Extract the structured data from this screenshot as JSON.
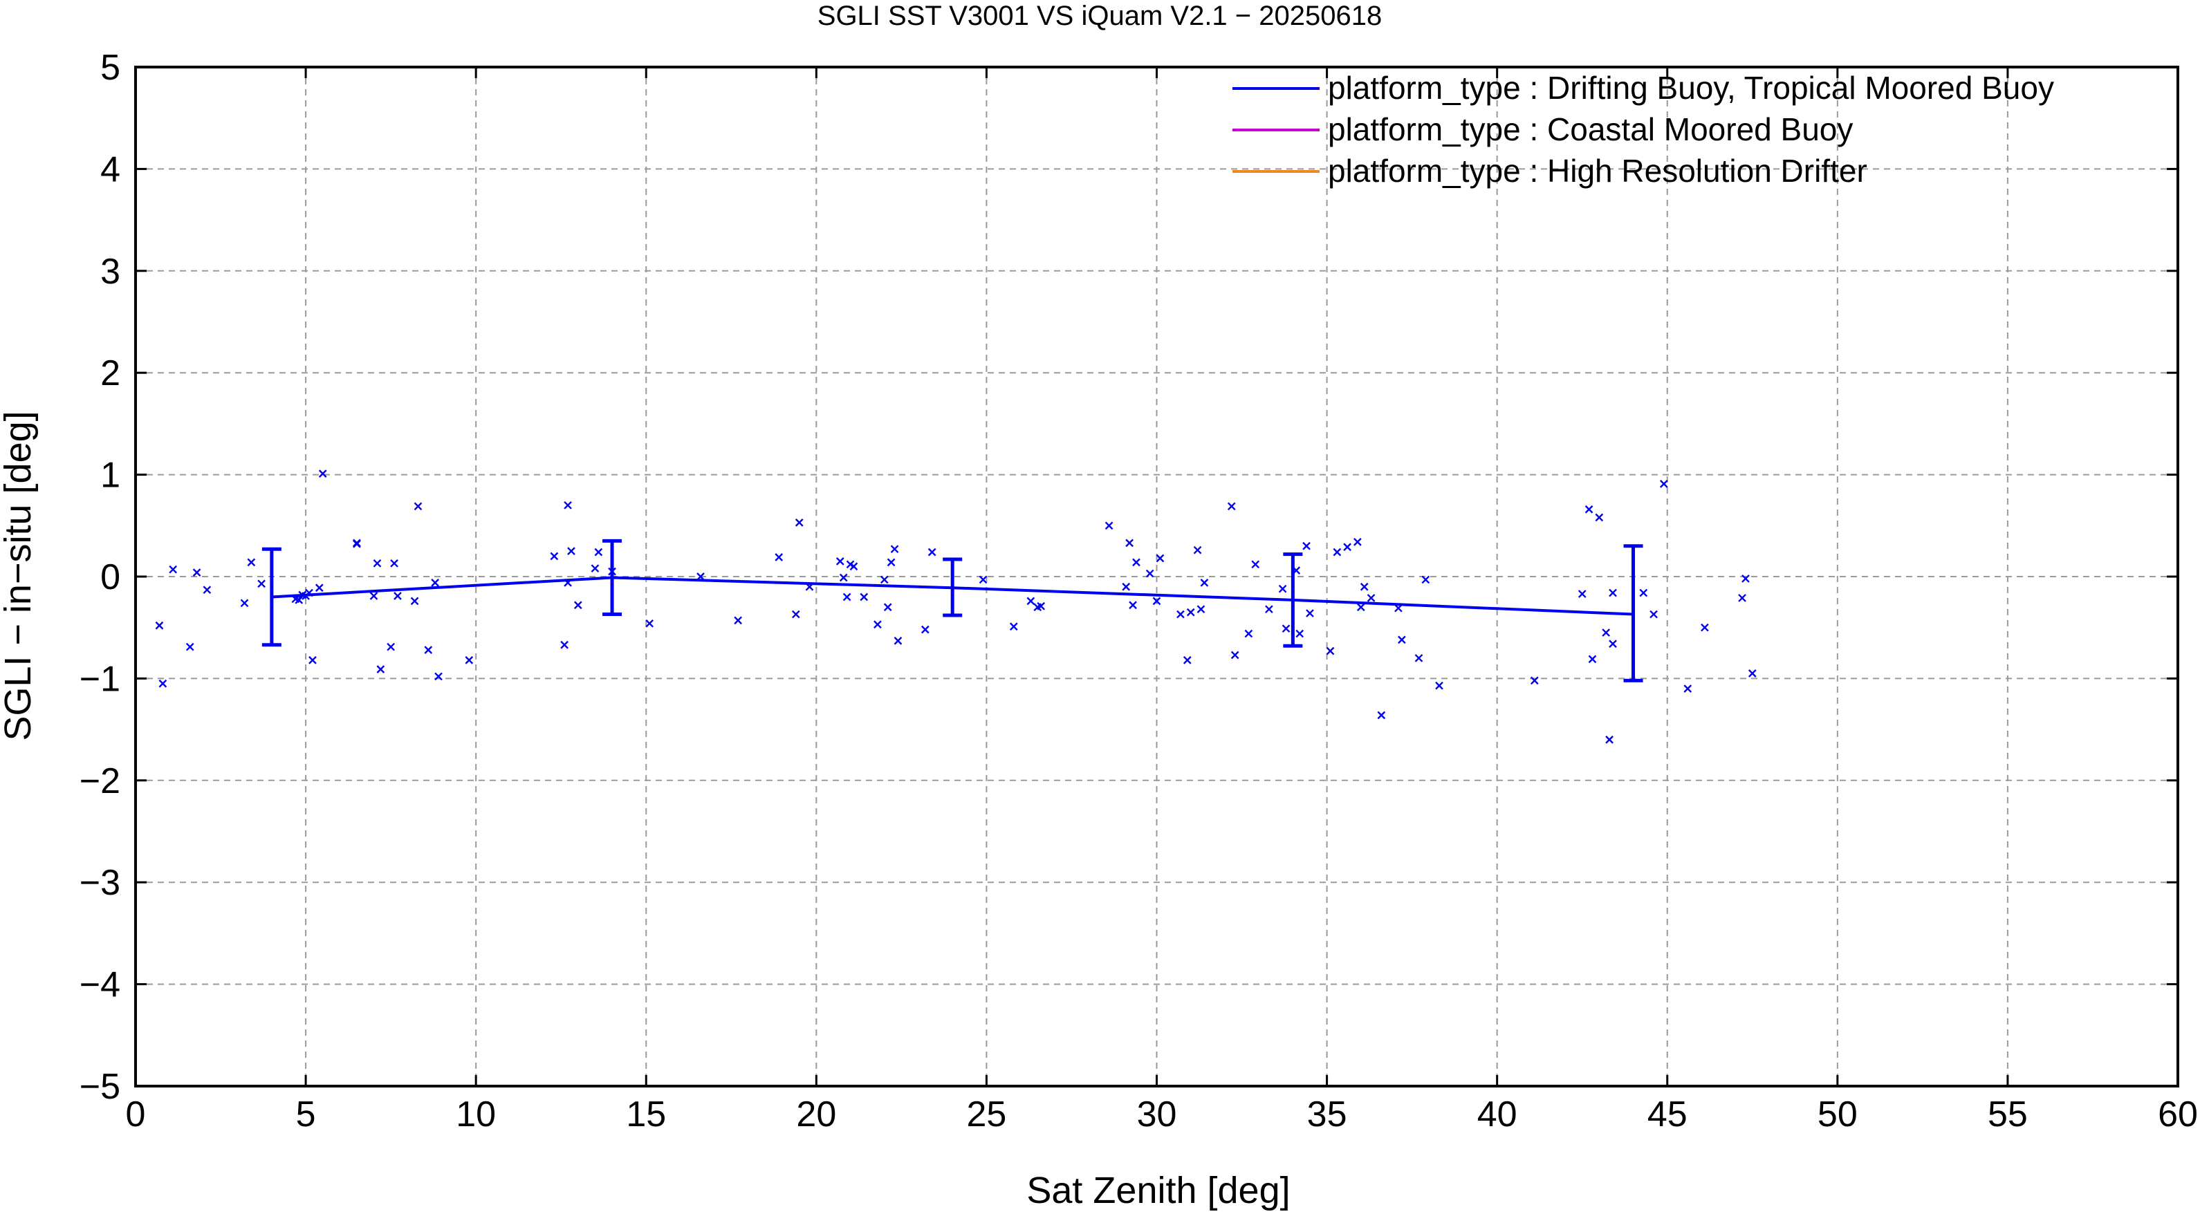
{
  "chart_data": {
    "type": "scatter",
    "title": "SGLI SST V3001 VS iQuam V2.1  − 20250618",
    "xlabel": "Sat Zenith [deg]",
    "ylabel": "SGLI − in−situ [deg]",
    "xlim": [
      0,
      60
    ],
    "ylim": [
      -5,
      5
    ],
    "xticks": [
      0,
      5,
      10,
      15,
      20,
      25,
      30,
      35,
      40,
      45,
      50,
      55,
      60
    ],
    "yticks": [
      -5,
      -4,
      -3,
      -2,
      -1,
      0,
      1,
      2,
      3,
      4,
      5
    ],
    "xtick_labels": [
      "0",
      "5",
      "10",
      "15",
      "20",
      "25",
      "30",
      "35",
      "40",
      "45",
      "50",
      "55",
      "60"
    ],
    "ytick_labels": [
      "−5",
      "−4",
      "−3",
      "−2",
      "−1",
      "0",
      "1",
      "2",
      "3",
      "4",
      "5"
    ],
    "grid": true,
    "legend_position": "top-right",
    "legend": [
      {
        "label": "platform_type : Drifting Buoy, Tropical Moored Buoy",
        "color": "#0000ee"
      },
      {
        "label": "platform_type : Coastal Moored Buoy",
        "color": "#cc00cc"
      },
      {
        "label": "platform_type : High Resolution Drifter",
        "color": "#ee8822"
      }
    ],
    "series": [
      {
        "name": "platform_type : Drifting Buoy, Tropical Moored Buoy",
        "color": "#0000ee",
        "points": [
          [
            0.7,
            -0.48
          ],
          [
            0.8,
            -1.05
          ],
          [
            1.1,
            0.07
          ],
          [
            1.6,
            -0.69
          ],
          [
            1.8,
            0.04
          ],
          [
            2.1,
            -0.13
          ],
          [
            3.2,
            -0.26
          ],
          [
            3.4,
            0.14
          ],
          [
            3.7,
            -0.07
          ],
          [
            4.7,
            -0.22
          ],
          [
            4.8,
            -0.23
          ],
          [
            4.9,
            -0.18
          ],
          [
            5.0,
            -0.19
          ],
          [
            5.1,
            -0.16
          ],
          [
            5.2,
            -0.82
          ],
          [
            5.4,
            -0.11
          ],
          [
            5.5,
            1.01
          ],
          [
            6.5,
            0.32
          ],
          [
            6.5,
            0.33
          ],
          [
            7.0,
            -0.19
          ],
          [
            7.1,
            0.13
          ],
          [
            7.2,
            -0.91
          ],
          [
            7.5,
            -0.69
          ],
          [
            7.6,
            0.13
          ],
          [
            7.7,
            -0.19
          ],
          [
            8.2,
            -0.24
          ],
          [
            8.3,
            0.69
          ],
          [
            8.6,
            -0.72
          ],
          [
            8.8,
            -0.06
          ],
          [
            8.9,
            -0.98
          ],
          [
            9.8,
            -0.82
          ],
          [
            12.3,
            0.2
          ],
          [
            12.6,
            -0.67
          ],
          [
            12.7,
            0.7
          ],
          [
            12.7,
            -0.06
          ],
          [
            12.8,
            0.25
          ],
          [
            13.0,
            -0.28
          ],
          [
            13.5,
            0.08
          ],
          [
            13.6,
            0.24
          ],
          [
            14.0,
            0.05
          ],
          [
            15.1,
            -0.46
          ],
          [
            16.6,
            0.0
          ],
          [
            17.7,
            -0.43
          ],
          [
            18.9,
            0.19
          ],
          [
            19.4,
            -0.37
          ],
          [
            19.5,
            0.53
          ],
          [
            19.8,
            -0.1
          ],
          [
            20.7,
            0.15
          ],
          [
            20.8,
            -0.01
          ],
          [
            20.9,
            -0.2
          ],
          [
            21.0,
            0.12
          ],
          [
            21.1,
            0.1
          ],
          [
            21.4,
            -0.2
          ],
          [
            21.8,
            -0.47
          ],
          [
            22.0,
            -0.03
          ],
          [
            22.1,
            -0.3
          ],
          [
            22.2,
            0.14
          ],
          [
            22.3,
            0.27
          ],
          [
            22.4,
            -0.63
          ],
          [
            23.2,
            -0.52
          ],
          [
            23.4,
            0.24
          ],
          [
            24.9,
            -0.03
          ],
          [
            25.8,
            -0.49
          ],
          [
            26.3,
            -0.24
          ],
          [
            26.5,
            -0.3
          ],
          [
            26.6,
            -0.29
          ],
          [
            28.6,
            0.5
          ],
          [
            29.1,
            -0.1
          ],
          [
            29.2,
            0.33
          ],
          [
            29.3,
            -0.28
          ],
          [
            29.4,
            0.14
          ],
          [
            29.8,
            0.03
          ],
          [
            30.0,
            -0.24
          ],
          [
            30.1,
            0.18
          ],
          [
            30.7,
            -0.37
          ],
          [
            30.9,
            -0.82
          ],
          [
            31.0,
            -0.35
          ],
          [
            31.2,
            0.26
          ],
          [
            31.3,
            -0.32
          ],
          [
            31.4,
            -0.06
          ],
          [
            32.2,
            0.69
          ],
          [
            32.3,
            -0.77
          ],
          [
            32.7,
            -0.56
          ],
          [
            32.9,
            0.12
          ],
          [
            33.3,
            -0.32
          ],
          [
            33.7,
            -0.12
          ],
          [
            33.8,
            -0.51
          ],
          [
            34.1,
            0.06
          ],
          [
            34.2,
            -0.56
          ],
          [
            34.4,
            0.3
          ],
          [
            34.5,
            -0.36
          ],
          [
            35.1,
            -0.73
          ],
          [
            35.3,
            0.24
          ],
          [
            35.6,
            0.29
          ],
          [
            35.9,
            0.34
          ],
          [
            36.0,
            -0.3
          ],
          [
            36.1,
            -0.1
          ],
          [
            36.3,
            -0.21
          ],
          [
            36.6,
            -1.36
          ],
          [
            37.1,
            -0.31
          ],
          [
            37.2,
            -0.62
          ],
          [
            37.7,
            -0.8
          ],
          [
            37.9,
            -0.03
          ],
          [
            38.3,
            -1.07
          ],
          [
            41.1,
            -1.02
          ],
          [
            42.5,
            -0.17
          ],
          [
            42.7,
            0.66
          ],
          [
            42.8,
            -0.81
          ],
          [
            43.0,
            0.58
          ],
          [
            43.2,
            -0.55
          ],
          [
            43.3,
            -1.6
          ],
          [
            43.4,
            -0.16
          ],
          [
            43.4,
            -0.66
          ],
          [
            44.3,
            -0.16
          ],
          [
            44.6,
            -0.37
          ],
          [
            44.9,
            0.91
          ],
          [
            45.6,
            -1.1
          ],
          [
            46.1,
            -0.5
          ],
          [
            47.2,
            -0.21
          ],
          [
            47.3,
            -0.02
          ],
          [
            47.5,
            -0.95
          ]
        ]
      },
      {
        "name": "platform_type : Drifting Buoy, Tropical Moored Buoy",
        "color": "#0000ee",
        "line": [
          {
            "x": 4,
            "mean": -0.2,
            "low": -0.67,
            "high": 0.27
          },
          {
            "x": 14,
            "mean": -0.01,
            "low": -0.37,
            "high": 0.35
          },
          {
            "x": 24,
            "mean": -0.11,
            "low": -0.38,
            "high": 0.17
          },
          {
            "x": 34,
            "mean": -0.23,
            "low": -0.68,
            "high": 0.22
          },
          {
            "x": 44,
            "mean": -0.37,
            "low": -1.02,
            "high": 0.3
          }
        ]
      }
    ]
  }
}
